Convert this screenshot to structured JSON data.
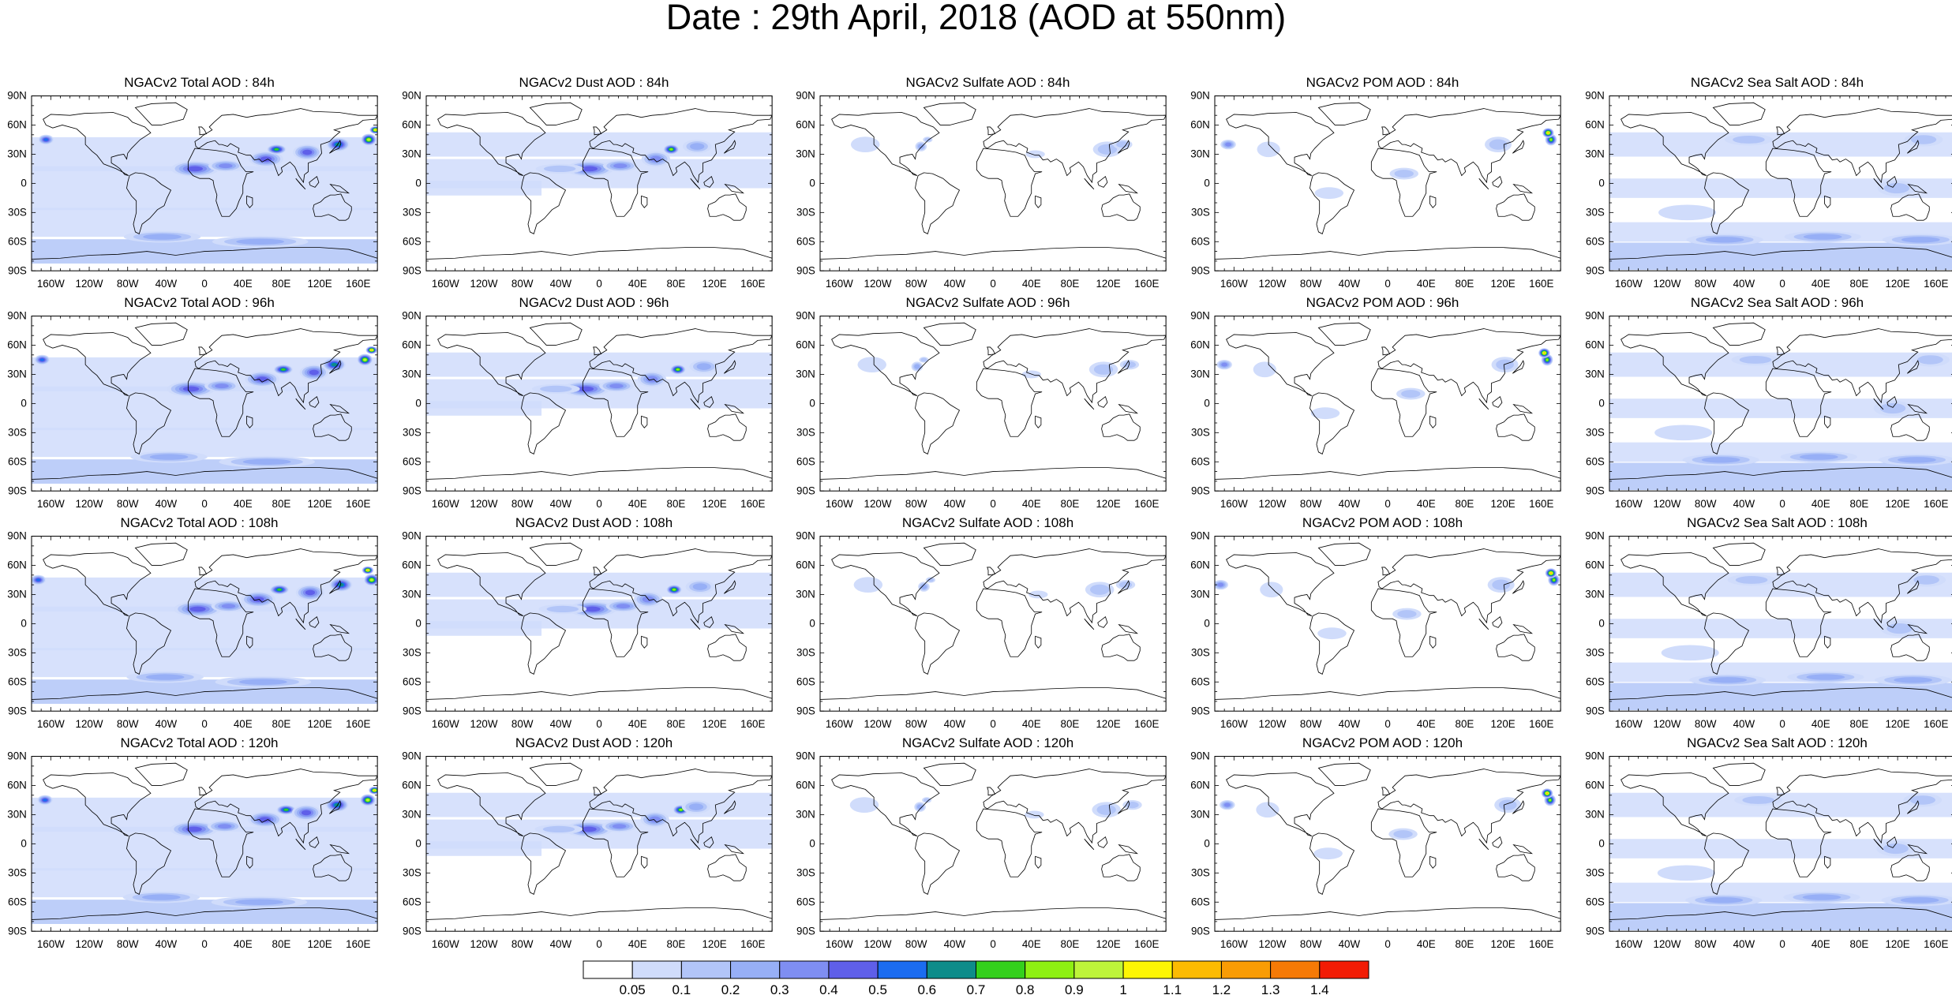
{
  "title": "Date : 29th April, 2018 (AOD at 550nm)",
  "lat_labels": [
    "90N",
    "60N",
    "30N",
    "0",
    "30S",
    "60S",
    "90S"
  ],
  "lon_labels": [
    "160W",
    "120W",
    "80W",
    "40W",
    "0",
    "40E",
    "80E",
    "120E",
    "160E"
  ],
  "panels": [
    {
      "title": "NGACv2 Total AOD : 84h",
      "species": "total",
      "hour": 84
    },
    {
      "title": "NGACv2 Dust AOD : 84h",
      "species": "dust",
      "hour": 84
    },
    {
      "title": "NGACv2 Sulfate AOD : 84h",
      "species": "sulfate",
      "hour": 84
    },
    {
      "title": "NGACv2 POM AOD : 84h",
      "species": "pom",
      "hour": 84
    },
    {
      "title": "NGACv2 Sea Salt AOD : 84h",
      "species": "seasalt",
      "hour": 84
    },
    {
      "title": "NGACv2 Total AOD : 96h",
      "species": "total",
      "hour": 96
    },
    {
      "title": "NGACv2 Dust AOD : 96h",
      "species": "dust",
      "hour": 96
    },
    {
      "title": "NGACv2 Sulfate AOD : 96h",
      "species": "sulfate",
      "hour": 96
    },
    {
      "title": "NGACv2 POM AOD : 96h",
      "species": "pom",
      "hour": 96
    },
    {
      "title": "NGACv2 Sea Salt AOD : 96h",
      "species": "seasalt",
      "hour": 96
    },
    {
      "title": "NGACv2 Total AOD : 108h",
      "species": "total",
      "hour": 108
    },
    {
      "title": "NGACv2 Dust AOD : 108h",
      "species": "dust",
      "hour": 108
    },
    {
      "title": "NGACv2 Sulfate AOD : 108h",
      "species": "sulfate",
      "hour": 108
    },
    {
      "title": "NGACv2 POM AOD : 108h",
      "species": "pom",
      "hour": 108
    },
    {
      "title": "NGACv2 Sea Salt AOD : 108h",
      "species": "seasalt",
      "hour": 108
    },
    {
      "title": "NGACv2 Total AOD : 120h",
      "species": "total",
      "hour": 120
    },
    {
      "title": "NGACv2 Dust AOD : 120h",
      "species": "dust",
      "hour": 120
    },
    {
      "title": "NGACv2 Sulfate AOD : 120h",
      "species": "sulfate",
      "hour": 120
    },
    {
      "title": "NGACv2 POM AOD : 120h",
      "species": "pom",
      "hour": 120
    },
    {
      "title": "NGACv2 Sea Salt  AOD : 120h",
      "species": "seasalt",
      "hour": 120
    }
  ],
  "colorbar": {
    "labels": [
      "0.05",
      "0.1",
      "0.2",
      "0.3",
      "0.4",
      "0.5",
      "0.6",
      "0.7",
      "0.8",
      "0.9",
      "1",
      "1.1",
      "1.2",
      "1.3",
      "1.4"
    ],
    "colors": [
      "#ffffff",
      "#d0dcfb",
      "#b2c5f8",
      "#97aff6",
      "#7f8ef2",
      "#5f5fe9",
      "#1b6cf0",
      "#0e8c8a",
      "#34d01c",
      "#8ef012",
      "#bef43a",
      "#fdf603",
      "#fcbb02",
      "#f99c04",
      "#f67a06",
      "#f21c05"
    ]
  }
}
